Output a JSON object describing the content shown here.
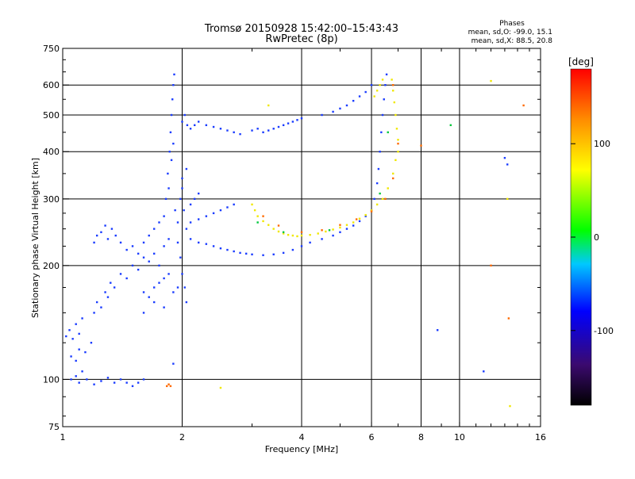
{
  "chart_data": {
    "type": "scatter",
    "title": "Tromsø 20150928 15:42:00–15:43:43",
    "subtitle": "RwPretec (8p)",
    "xlabel": "Frequency [MHz]",
    "ylabel": "Stationary phase Virtual Height [km]",
    "x_scale": "log",
    "y_scale": "log",
    "xlim": [
      1,
      16
    ],
    "ylim": [
      75,
      750
    ],
    "x_ticks": [
      1,
      2,
      4,
      6,
      8,
      10,
      16
    ],
    "x_tick_labels": [
      "1",
      "2",
      "4",
      "6",
      "8",
      "10",
      "16"
    ],
    "y_ticks": [
      75,
      100,
      200,
      300,
      400,
      500,
      600,
      750
    ],
    "y_tick_labels": [
      "75",
      "100",
      "200",
      "300",
      "400",
      "500",
      "600",
      "750"
    ],
    "grid": true,
    "phases_header": "Phases",
    "phases_o": "mean, sd,O: -99.0, 15.1",
    "phases_x": "mean, sd,X: 88.5, 20.8",
    "colorbar": {
      "label": "[deg]",
      "range": [
        -180,
        180
      ],
      "ticks": [
        "100",
        "0",
        "-100"
      ],
      "tick_values": [
        100,
        0,
        -100
      ],
      "colors": [
        "#000000",
        "#3b0a6e",
        "#0000ff",
        "#00c8ff",
        "#00ff00",
        "#ffff00",
        "#ff8c00",
        "#ff0000"
      ]
    },
    "series": [
      {
        "value": -100,
        "color": "#1a3cff",
        "points": [
          [
            1.05,
            100
          ],
          [
            1.08,
            102
          ],
          [
            1.1,
            98
          ],
          [
            1.12,
            105
          ],
          [
            1.15,
            100
          ],
          [
            1.2,
            97
          ],
          [
            1.25,
            99
          ],
          [
            1.3,
            101
          ],
          [
            1.35,
            98
          ],
          [
            1.4,
            100
          ],
          [
            1.45,
            98
          ],
          [
            1.5,
            96
          ],
          [
            1.02,
            130
          ],
          [
            1.04,
            135
          ],
          [
            1.06,
            128
          ],
          [
            1.08,
            140
          ],
          [
            1.1,
            132
          ],
          [
            1.12,
            145
          ],
          [
            1.05,
            115
          ],
          [
            1.08,
            112
          ],
          [
            1.1,
            120
          ],
          [
            1.14,
            118
          ],
          [
            1.18,
            125
          ],
          [
            1.2,
            150
          ],
          [
            1.22,
            160
          ],
          [
            1.25,
            155
          ],
          [
            1.28,
            170
          ],
          [
            1.3,
            165
          ],
          [
            1.32,
            180
          ],
          [
            1.35,
            175
          ],
          [
            1.4,
            190
          ],
          [
            1.45,
            185
          ],
          [
            1.5,
            200
          ],
          [
            1.55,
            195
          ],
          [
            1.2,
            230
          ],
          [
            1.22,
            240
          ],
          [
            1.25,
            245
          ],
          [
            1.28,
            255
          ],
          [
            1.3,
            235
          ],
          [
            1.33,
            250
          ],
          [
            1.36,
            240
          ],
          [
            1.4,
            230
          ],
          [
            1.45,
            220
          ],
          [
            1.5,
            225
          ],
          [
            1.55,
            215
          ],
          [
            1.6,
            210
          ],
          [
            1.65,
            205
          ],
          [
            1.7,
            215
          ],
          [
            1.75,
            200
          ],
          [
            1.8,
            225
          ],
          [
            1.85,
            235
          ],
          [
            1.6,
            230
          ],
          [
            1.65,
            240
          ],
          [
            1.7,
            250
          ],
          [
            1.75,
            260
          ],
          [
            1.8,
            270
          ],
          [
            1.6,
            170
          ],
          [
            1.65,
            165
          ],
          [
            1.7,
            175
          ],
          [
            1.75,
            180
          ],
          [
            1.8,
            185
          ],
          [
            1.85,
            190
          ],
          [
            1.6,
            150
          ],
          [
            1.7,
            160
          ],
          [
            1.8,
            155
          ],
          [
            1.9,
            170
          ],
          [
            1.95,
            175
          ],
          [
            1.82,
            300
          ],
          [
            1.84,
            350
          ],
          [
            1.86,
            400
          ],
          [
            1.87,
            450
          ],
          [
            1.88,
            500
          ],
          [
            1.89,
            550
          ],
          [
            1.9,
            600
          ],
          [
            1.91,
            640
          ],
          [
            1.85,
            320
          ],
          [
            1.88,
            380
          ],
          [
            1.9,
            420
          ],
          [
            1.92,
            280
          ],
          [
            1.95,
            260
          ],
          [
            1.98,
            300
          ],
          [
            2.0,
            320
          ],
          [
            2.02,
            280
          ],
          [
            2.05,
            250
          ],
          [
            1.95,
            230
          ],
          [
            1.98,
            210
          ],
          [
            2.0,
            190
          ],
          [
            2.03,
            175
          ],
          [
            2.05,
            160
          ],
          [
            2.0,
            480
          ],
          [
            2.03,
            500
          ],
          [
            2.06,
            470
          ],
          [
            2.1,
            460
          ],
          [
            2.15,
            470
          ],
          [
            2.2,
            480
          ],
          [
            2.3,
            470
          ],
          [
            2.4,
            465
          ],
          [
            2.5,
            460
          ],
          [
            2.6,
            455
          ],
          [
            2.7,
            450
          ],
          [
            2.8,
            445
          ],
          [
            3.0,
            455
          ],
          [
            3.1,
            460
          ],
          [
            3.2,
            450
          ],
          [
            3.3,
            455
          ],
          [
            3.4,
            460
          ],
          [
            3.5,
            465
          ],
          [
            3.6,
            470
          ],
          [
            3.7,
            475
          ],
          [
            3.8,
            480
          ],
          [
            3.9,
            485
          ],
          [
            4.0,
            490
          ],
          [
            4.5,
            500
          ],
          [
            4.8,
            510
          ],
          [
            5.0,
            520
          ],
          [
            5.2,
            530
          ],
          [
            5.4,
            545
          ],
          [
            5.6,
            560
          ],
          [
            5.8,
            575
          ],
          [
            6.0,
            600
          ],
          [
            2.1,
            235
          ],
          [
            2.2,
            230
          ],
          [
            2.3,
            228
          ],
          [
            2.4,
            225
          ],
          [
            2.5,
            222
          ],
          [
            2.6,
            220
          ],
          [
            2.7,
            218
          ],
          [
            2.8,
            216
          ],
          [
            2.9,
            215
          ],
          [
            3.0,
            214
          ],
          [
            3.2,
            213
          ],
          [
            3.4,
            214
          ],
          [
            3.6,
            216
          ],
          [
            3.8,
            220
          ],
          [
            4.0,
            225
          ],
          [
            4.2,
            230
          ],
          [
            4.5,
            235
          ],
          [
            4.8,
            240
          ],
          [
            5.0,
            245
          ],
          [
            5.2,
            250
          ],
          [
            5.4,
            255
          ],
          [
            5.6,
            262
          ],
          [
            5.8,
            270
          ],
          [
            6.0,
            280
          ],
          [
            6.1,
            300
          ],
          [
            6.2,
            330
          ],
          [
            6.25,
            360
          ],
          [
            6.3,
            400
          ],
          [
            6.35,
            450
          ],
          [
            6.4,
            500
          ],
          [
            6.45,
            550
          ],
          [
            6.5,
            600
          ],
          [
            6.55,
            640
          ],
          [
            2.1,
            260
          ],
          [
            2.2,
            265
          ],
          [
            2.3,
            270
          ],
          [
            2.4,
            275
          ],
          [
            2.5,
            280
          ],
          [
            2.6,
            285
          ],
          [
            2.7,
            290
          ],
          [
            2.1,
            290
          ],
          [
            2.15,
            300
          ],
          [
            2.2,
            310
          ],
          [
            2.0,
            340
          ],
          [
            2.05,
            360
          ],
          [
            8.8,
            135
          ],
          [
            11.5,
            105
          ],
          [
            13.0,
            385
          ],
          [
            13.2,
            370
          ],
          [
            1.9,
            110
          ],
          [
            1.55,
            98
          ],
          [
            1.6,
            100
          ]
        ]
      },
      {
        "value": 100,
        "color": "#f0e800",
        "points": [
          [
            3.0,
            290
          ],
          [
            3.05,
            280
          ],
          [
            3.1,
            270
          ],
          [
            3.2,
            262
          ],
          [
            3.3,
            256
          ],
          [
            3.4,
            250
          ],
          [
            3.5,
            246
          ],
          [
            3.6,
            243
          ],
          [
            3.7,
            241
          ],
          [
            3.8,
            240
          ],
          [
            3.9,
            239
          ],
          [
            4.0,
            240
          ],
          [
            4.2,
            241
          ],
          [
            4.4,
            243
          ],
          [
            4.6,
            246
          ],
          [
            4.8,
            249
          ],
          [
            5.0,
            252
          ],
          [
            5.2,
            256
          ],
          [
            5.4,
            260
          ],
          [
            5.6,
            266
          ],
          [
            5.8,
            272
          ],
          [
            6.0,
            280
          ],
          [
            6.2,
            290
          ],
          [
            6.4,
            300
          ],
          [
            6.6,
            320
          ],
          [
            6.8,
            350
          ],
          [
            6.9,
            380
          ],
          [
            7.0,
            400
          ],
          [
            7.0,
            430
          ],
          [
            6.95,
            460
          ],
          [
            6.9,
            500
          ],
          [
            6.85,
            540
          ],
          [
            6.8,
            580
          ],
          [
            6.75,
            620
          ],
          [
            6.1,
            560
          ],
          [
            6.2,
            580
          ],
          [
            6.3,
            600
          ],
          [
            6.4,
            620
          ],
          [
            3.3,
            530
          ],
          [
            2.5,
            95
          ],
          [
            13.2,
            300
          ],
          [
            12.0,
            615
          ],
          [
            13.4,
            85
          ]
        ]
      },
      {
        "value": 160,
        "color": "#ff6a00",
        "points": [
          [
            3.2,
            270
          ],
          [
            3.5,
            255
          ],
          [
            4.0,
            245
          ],
          [
            4.5,
            248
          ],
          [
            5.0,
            256
          ],
          [
            5.5,
            265
          ],
          [
            6.0,
            278
          ],
          [
            6.5,
            300
          ],
          [
            6.8,
            340
          ],
          [
            7.0,
            420
          ],
          [
            6.8,
            600
          ],
          [
            1.83,
            96
          ],
          [
            1.85,
            97
          ],
          [
            1.87,
            96
          ],
          [
            14.5,
            530
          ],
          [
            12.0,
            200
          ],
          [
            13.3,
            145
          ],
          [
            8.0,
            415
          ]
        ]
      },
      {
        "value": 20,
        "color": "#00c83c",
        "points": [
          [
            3.1,
            260
          ],
          [
            3.6,
            245
          ],
          [
            4.7,
            248
          ],
          [
            6.3,
            310
          ],
          [
            6.6,
            450
          ],
          [
            9.5,
            470
          ]
        ]
      }
    ]
  }
}
